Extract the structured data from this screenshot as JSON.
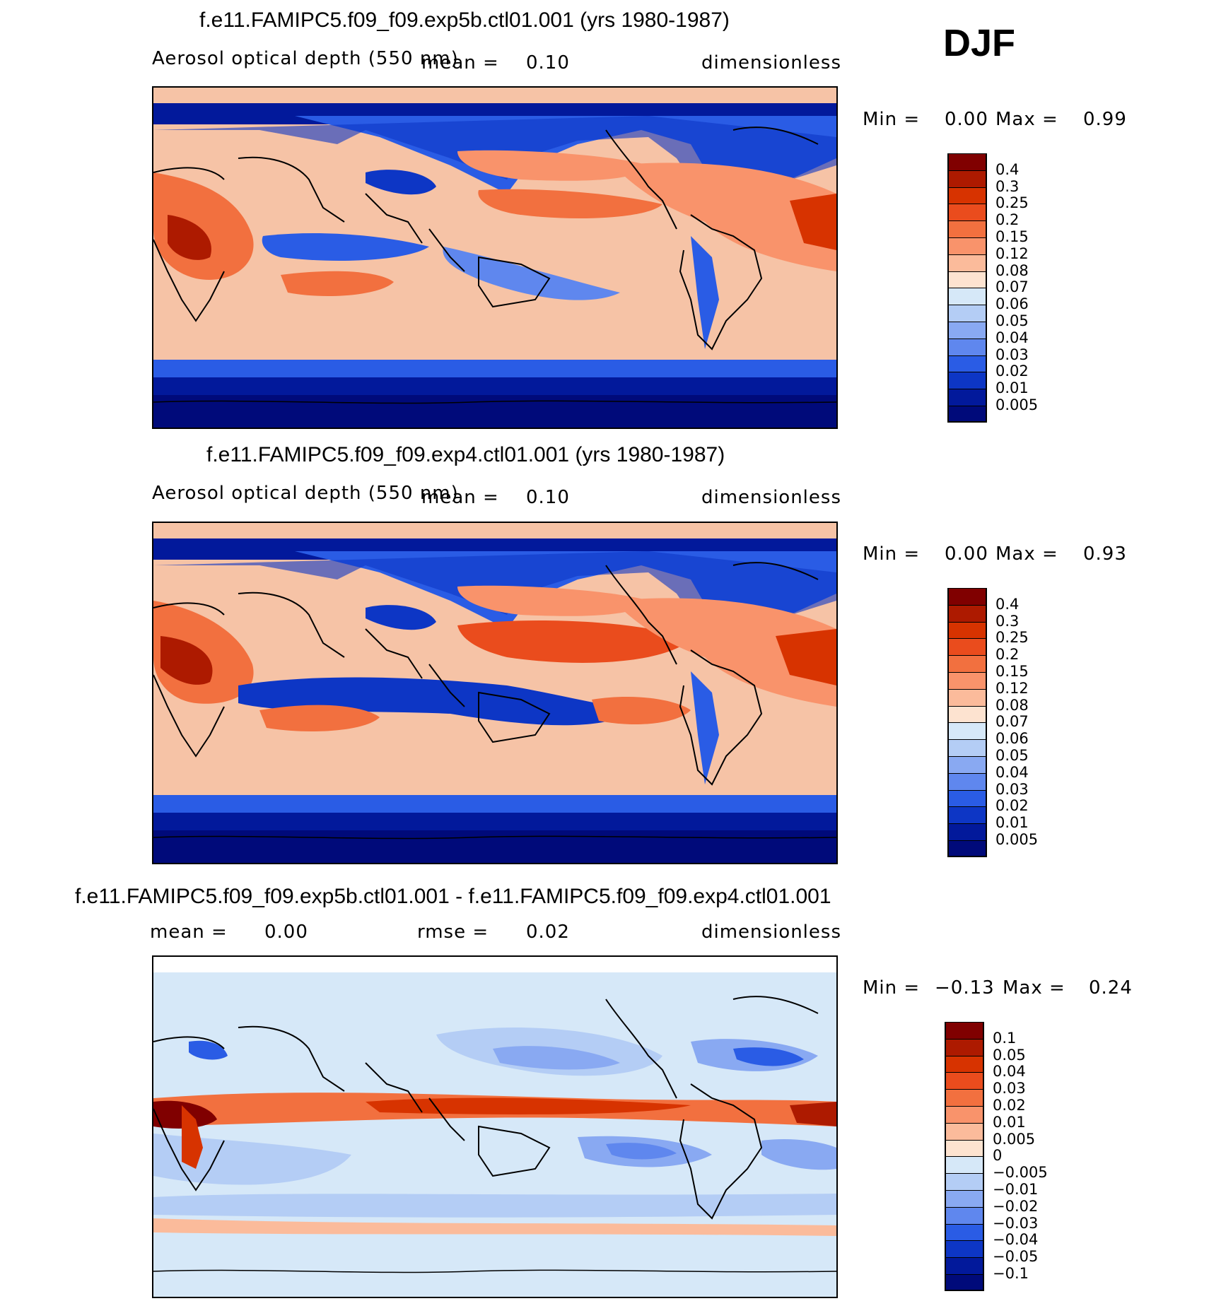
{
  "season": "DJF",
  "panels": [
    {
      "title": "f.e11.FAMIPC5.f09_f09.exp5b.ctl01.001 (yrs 1980-1987)",
      "variable": "Aerosol optical depth (550 nm)",
      "mean_label": "mean =",
      "mean_value": "0.10",
      "units": "dimensionless",
      "min_label": "Min =",
      "min_value": "0.00",
      "max_label": "Max =",
      "max_value": "0.99",
      "colorbar": {
        "labels": [
          "0.4",
          "0.3",
          "0.25",
          "0.2",
          "0.15",
          "0.12",
          "0.08",
          "0.07",
          "0.06",
          "0.05",
          "0.04",
          "0.03",
          "0.02",
          "0.01",
          "0.005"
        ],
        "colors": [
          "#800000",
          "#ad1a00",
          "#d73300",
          "#ea4c1d",
          "#f2703f",
          "#f9936b",
          "#fbbb9b",
          "#fde3d0",
          "#d6e8f8",
          "#b4cdf5",
          "#89a9f2",
          "#5f87ee",
          "#2a5ce5",
          "#0d36c5",
          "#02199b",
          "#000a7a"
        ]
      }
    },
    {
      "title": "f.e11.FAMIPC5.f09_f09.exp4.ctl01.001 (yrs 1980-1987)",
      "variable": "Aerosol optical depth (550 nm)",
      "mean_label": "mean =",
      "mean_value": "0.10",
      "units": "dimensionless",
      "min_label": "Min =",
      "min_value": "0.00",
      "max_label": "Max =",
      "max_value": "0.93",
      "colorbar": {
        "labels": [
          "0.4",
          "0.3",
          "0.25",
          "0.2",
          "0.15",
          "0.12",
          "0.08",
          "0.07",
          "0.06",
          "0.05",
          "0.04",
          "0.03",
          "0.02",
          "0.01",
          "0.005"
        ],
        "colors": [
          "#800000",
          "#ad1a00",
          "#d73300",
          "#ea4c1d",
          "#f2703f",
          "#f9936b",
          "#fbbb9b",
          "#fde3d0",
          "#d6e8f8",
          "#b4cdf5",
          "#89a9f2",
          "#5f87ee",
          "#2a5ce5",
          "#0d36c5",
          "#02199b",
          "#000a7a"
        ]
      }
    },
    {
      "title": "f.e11.FAMIPC5.f09_f09.exp5b.ctl01.001 - f.e11.FAMIPC5.f09_f09.exp4.ctl01.001",
      "mean_label": "mean =",
      "mean_value": "0.00",
      "rmse_label": "rmse =",
      "rmse_value": "0.02",
      "units": "dimensionless",
      "min_label": "Min =",
      "min_value": "−0.13",
      "max_label": "Max =",
      "max_value": "0.24",
      "colorbar": {
        "labels": [
          "0.1",
          "0.05",
          "0.04",
          "0.03",
          "0.02",
          "0.01",
          "0.005",
          "0",
          "−0.005",
          "−0.01",
          "−0.02",
          "−0.03",
          "−0.04",
          "−0.05",
          "−0.1"
        ],
        "colors": [
          "#800000",
          "#ad1a00",
          "#d73300",
          "#ea4c1d",
          "#f2703f",
          "#f9936b",
          "#fbbb9b",
          "#fde3d0",
          "#d6e8f8",
          "#b4cdf5",
          "#89a9f2",
          "#5f87ee",
          "#2a5ce5",
          "#0d36c5",
          "#02199b",
          "#000a7a"
        ]
      }
    }
  ],
  "chart_data": [
    {
      "type": "heatmap",
      "title": "f.e11.FAMIPC5.f09_f09.exp5b.ctl01.001 (yrs 1980-1987)",
      "variable": "Aerosol optical depth (550 nm)",
      "season": "DJF",
      "units": "dimensionless",
      "mean": 0.1,
      "min": 0.0,
      "max": 0.99,
      "contour_levels": [
        0.005,
        0.01,
        0.02,
        0.03,
        0.04,
        0.05,
        0.06,
        0.07,
        0.08,
        0.12,
        0.15,
        0.2,
        0.25,
        0.3,
        0.4
      ]
    },
    {
      "type": "heatmap",
      "title": "f.e11.FAMIPC5.f09_f09.exp4.ctl01.001 (yrs 1980-1987)",
      "variable": "Aerosol optical depth (550 nm)",
      "season": "DJF",
      "units": "dimensionless",
      "mean": 0.1,
      "min": 0.0,
      "max": 0.93,
      "contour_levels": [
        0.005,
        0.01,
        0.02,
        0.03,
        0.04,
        0.05,
        0.06,
        0.07,
        0.08,
        0.12,
        0.15,
        0.2,
        0.25,
        0.3,
        0.4
      ]
    },
    {
      "type": "heatmap",
      "title": "f.e11.FAMIPC5.f09_f09.exp5b.ctl01.001 - f.e11.FAMIPC5.f09_f09.exp4.ctl01.001",
      "season": "DJF",
      "units": "dimensionless",
      "mean": 0.0,
      "rmse": 0.02,
      "min": -0.13,
      "max": 0.24,
      "contour_levels": [
        -0.1,
        -0.05,
        -0.04,
        -0.03,
        -0.02,
        -0.01,
        -0.005,
        0,
        0.005,
        0.01,
        0.02,
        0.03,
        0.04,
        0.05,
        0.1
      ]
    }
  ]
}
